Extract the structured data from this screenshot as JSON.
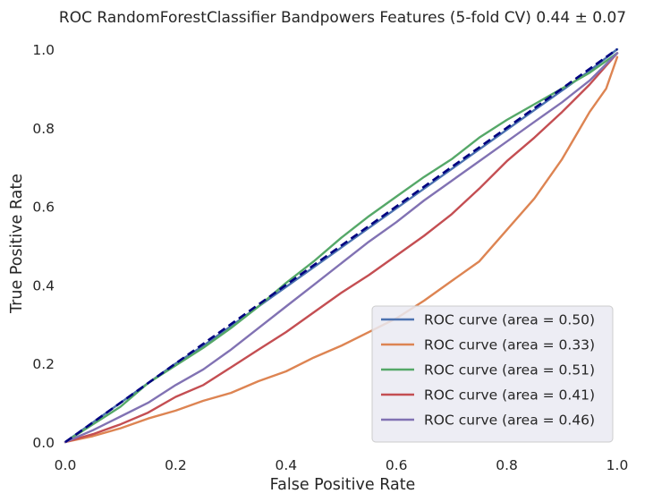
{
  "chart_data": {
    "type": "line",
    "title": "ROC RandomForestClassifier Bandpowers Features (5-fold CV) 0.44 ± 0.07",
    "xlabel": "False Positive Rate",
    "ylabel": "True Positive Rate",
    "xlim": [
      0.0,
      1.0
    ],
    "ylim": [
      0.0,
      1.0
    ],
    "xticks": [
      "0.0",
      "0.2",
      "0.4",
      "0.6",
      "0.8",
      "1.0"
    ],
    "yticks": [
      "0.0",
      "0.2",
      "0.4",
      "0.6",
      "0.8",
      "1.0"
    ],
    "grid": false,
    "legend_position": "bottom-right",
    "series": [
      {
        "name": "ROC curve (area = 0.50)",
        "color": "#4c72b0",
        "x": [
          0,
          0.05,
          0.1,
          0.15,
          0.2,
          0.25,
          0.3,
          0.35,
          0.4,
          0.45,
          0.5,
          0.55,
          0.6,
          0.65,
          0.7,
          0.75,
          0.8,
          0.85,
          0.9,
          0.95,
          1.0
        ],
        "y": [
          0,
          0.05,
          0.1,
          0.15,
          0.2,
          0.245,
          0.295,
          0.345,
          0.395,
          0.445,
          0.495,
          0.545,
          0.595,
          0.645,
          0.695,
          0.745,
          0.795,
          0.845,
          0.895,
          0.945,
          1.0
        ]
      },
      {
        "name": "ROC curve (area = 0.33)",
        "color": "#dd8452",
        "x": [
          0,
          0.05,
          0.1,
          0.15,
          0.2,
          0.25,
          0.3,
          0.35,
          0.4,
          0.45,
          0.5,
          0.55,
          0.6,
          0.65,
          0.7,
          0.75,
          0.8,
          0.85,
          0.9,
          0.95,
          0.98,
          1.0
        ],
        "y": [
          0,
          0.015,
          0.035,
          0.06,
          0.08,
          0.105,
          0.125,
          0.155,
          0.18,
          0.215,
          0.245,
          0.28,
          0.315,
          0.36,
          0.41,
          0.46,
          0.54,
          0.62,
          0.72,
          0.84,
          0.9,
          0.98
        ]
      },
      {
        "name": "ROC curve (area = 0.51)",
        "color": "#55a868",
        "x": [
          0,
          0.05,
          0.1,
          0.15,
          0.2,
          0.25,
          0.3,
          0.35,
          0.4,
          0.45,
          0.5,
          0.55,
          0.6,
          0.65,
          0.7,
          0.75,
          0.8,
          0.85,
          0.9,
          0.95,
          1.0
        ],
        "y": [
          0,
          0.045,
          0.09,
          0.15,
          0.195,
          0.24,
          0.29,
          0.345,
          0.405,
          0.46,
          0.52,
          0.575,
          0.625,
          0.675,
          0.72,
          0.775,
          0.82,
          0.86,
          0.9,
          0.94,
          0.99
        ]
      },
      {
        "name": "ROC curve (area = 0.41)",
        "color": "#c44e52",
        "x": [
          0,
          0.05,
          0.1,
          0.15,
          0.2,
          0.25,
          0.3,
          0.35,
          0.4,
          0.45,
          0.5,
          0.55,
          0.6,
          0.65,
          0.7,
          0.75,
          0.8,
          0.85,
          0.9,
          0.95,
          1.0
        ],
        "y": [
          0,
          0.02,
          0.045,
          0.075,
          0.115,
          0.145,
          0.19,
          0.235,
          0.28,
          0.33,
          0.38,
          0.425,
          0.475,
          0.525,
          0.58,
          0.645,
          0.715,
          0.775,
          0.84,
          0.91,
          0.99
        ]
      },
      {
        "name": "ROC curve (area = 0.46)",
        "color": "#8172b3",
        "x": [
          0,
          0.05,
          0.1,
          0.15,
          0.2,
          0.25,
          0.3,
          0.35,
          0.4,
          0.45,
          0.5,
          0.55,
          0.6,
          0.65,
          0.7,
          0.75,
          0.8,
          0.85,
          0.9,
          0.95,
          1.0
        ],
        "y": [
          0,
          0.03,
          0.065,
          0.1,
          0.145,
          0.185,
          0.235,
          0.29,
          0.345,
          0.4,
          0.455,
          0.51,
          0.56,
          0.615,
          0.665,
          0.715,
          0.765,
          0.815,
          0.865,
          0.92,
          0.99
        ]
      }
    ],
    "reference_line": {
      "color": "#000080",
      "style": "dashed",
      "x": [
        0,
        1
      ],
      "y": [
        0,
        1
      ]
    }
  }
}
